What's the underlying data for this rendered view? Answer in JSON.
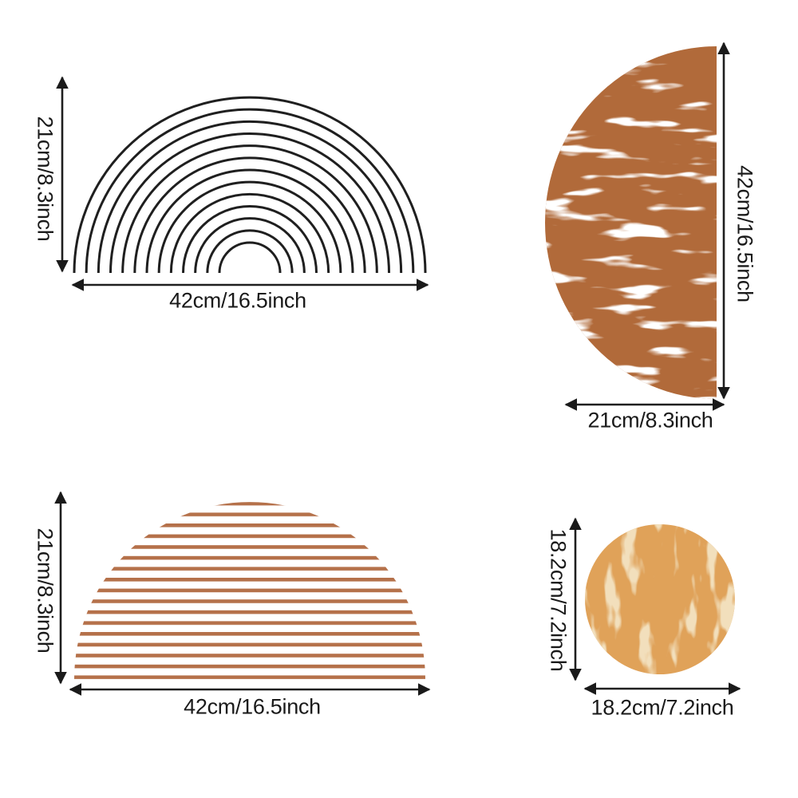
{
  "diagram": {
    "type": "product-size-chart",
    "background": "#ffffff"
  },
  "colors": {
    "line": "#1f1f1f",
    "text": "#1a1a1a",
    "terracotta": "#B16A3A",
    "terracotta_stripe": "#B5714A",
    "orange": "#E0A259",
    "speckle_white": "#ffffff",
    "speckle_cream": "#F2DFBC"
  },
  "panels": [
    {
      "id": "rainbow-arch",
      "position": "top-left",
      "shape": "concentric-semicircle-lines",
      "rings": 13,
      "height_label": "21cm/8.3inch",
      "width_label": "42cm/16.5inch"
    },
    {
      "id": "marble-half-circle",
      "position": "top-right",
      "shape": "half-circle-flat-right",
      "texture": "white-marble-speckle",
      "height_label": "42cm/16.5inch",
      "width_label": "21cm/8.3inch"
    },
    {
      "id": "striped-semicircle",
      "position": "bottom-left",
      "shape": "semicircle-horizontal-stripes",
      "stripes": 17,
      "height_label": "21cm/8.3inch",
      "width_label": "42cm/16.5inch"
    },
    {
      "id": "marble-circle",
      "position": "bottom-right",
      "shape": "circle",
      "texture": "cream-marble-speckle",
      "height_label": "18.2cm/7.2inch",
      "width_label": "18.2cm/7.2inch"
    }
  ]
}
